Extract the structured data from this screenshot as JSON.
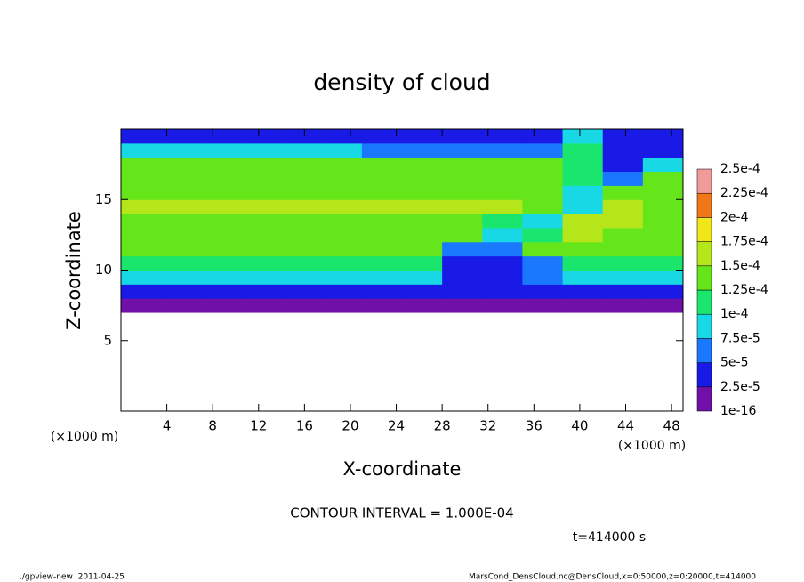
{
  "chart_data": {
    "type": "contourf",
    "title": "density of cloud",
    "xlabel": "X-coordinate",
    "ylabel": "Z-coordinate",
    "z_unit": "(×1000 m)",
    "x_unit": "(×1000 m)",
    "annotation": "CONTOUR INTERVAL = 1.000E-04",
    "time_label": "t=414000 s",
    "footer_left": "./gpview-new  2011-04-25",
    "footer_right": "MarsCond_DensCloud.nc@DensCloud,x=0:50000,z=0:20000,t=414000",
    "xlim": [
      0,
      49
    ],
    "ylim": [
      0,
      20
    ],
    "xticks": [
      4,
      8,
      12,
      16,
      20,
      24,
      28,
      32,
      36,
      40,
      44,
      48
    ],
    "yticks": [
      5,
      10,
      15
    ],
    "levels": [
      {
        "value": 1e-16,
        "label": "1e-16"
      },
      {
        "value": 2.5e-05,
        "label": "2.5e-5"
      },
      {
        "value": 5e-05,
        "label": "5e-5"
      },
      {
        "value": 7.5e-05,
        "label": "7.5e-5"
      },
      {
        "value": 0.0001,
        "label": "1e-4"
      },
      {
        "value": 0.000125,
        "label": "1.25e-4"
      },
      {
        "value": 0.00015,
        "label": "1.5e-4"
      },
      {
        "value": 0.000175,
        "label": "1.75e-4"
      },
      {
        "value": 0.0002,
        "label": "2e-4"
      },
      {
        "value": 0.000225,
        "label": "2.25e-4"
      },
      {
        "value": 0.00025,
        "label": "2.5e-4"
      }
    ],
    "colors": [
      "#7010a8",
      "#1a1ae6",
      "#1a78ff",
      "#19d8e6",
      "#1ae66e",
      "#64e61a",
      "#b4e61a",
      "#f0e619",
      "#f07819",
      "#f09a9a"
    ],
    "field": {
      "x_edges": [
        0,
        3.5,
        7,
        10.5,
        14,
        17.5,
        21,
        24.5,
        28,
        31.5,
        35,
        38.5,
        42,
        45.5,
        49
      ],
      "z_edges": [
        7,
        8,
        9,
        10,
        11,
        12,
        13,
        14,
        15,
        16,
        17,
        18,
        19,
        20
      ],
      "values": [
        [
          5e-06,
          5e-06,
          5e-06,
          5e-06,
          5e-06,
          5e-06,
          5e-06,
          5e-06,
          5e-06,
          5e-06,
          5e-06,
          5e-06,
          5e-06,
          5e-06
        ],
        [
          4e-05,
          4e-05,
          4e-05,
          4e-05,
          4e-05,
          4e-05,
          4e-05,
          4e-05,
          3e-05,
          3e-05,
          4e-05,
          4e-05,
          4e-05,
          4e-05
        ],
        [
          8.5e-05,
          8.5e-05,
          8.5e-05,
          8.5e-05,
          8.5e-05,
          8.5e-05,
          8.5e-05,
          8.5e-05,
          3e-05,
          3e-05,
          6e-05,
          8e-05,
          8.5e-05,
          8.5e-05
        ],
        [
          0.00012,
          0.00012,
          0.00012,
          0.00012,
          0.00012,
          0.00012,
          0.00012,
          0.0001,
          4e-05,
          4e-05,
          6e-05,
          0.00011,
          0.00012,
          0.00012
        ],
        [
          0.00014,
          0.00014,
          0.00014,
          0.00014,
          0.00014,
          0.00014,
          0.00014,
          0.00014,
          5e-05,
          5e-05,
          0.00013,
          0.00014,
          0.00014,
          0.00014
        ],
        [
          0.00014,
          0.00014,
          0.00014,
          0.00014,
          0.00014,
          0.00014,
          0.00014,
          0.00014,
          0.00013,
          8e-05,
          0.00012,
          0.00016,
          0.000145,
          0.00014
        ],
        [
          0.000145,
          0.000145,
          0.000145,
          0.000145,
          0.000145,
          0.000145,
          0.000145,
          0.000145,
          0.000145,
          0.00012,
          8e-05,
          0.000165,
          0.00015,
          0.000145
        ],
        [
          0.00015,
          0.00015,
          0.00015,
          0.00015,
          0.00015,
          0.00015,
          0.00015,
          0.00015,
          0.00015,
          0.00015,
          0.00013,
          9e-05,
          0.000155,
          0.000145
        ],
        [
          0.000145,
          0.000145,
          0.000145,
          0.000145,
          0.000145,
          0.000145,
          0.000145,
          0.000145,
          0.000145,
          0.000145,
          0.00014,
          9e-05,
          0.00014,
          0.00014
        ],
        [
          0.00014,
          0.00014,
          0.00014,
          0.00014,
          0.00014,
          0.00014,
          0.00014,
          0.00014,
          0.00014,
          0.00014,
          0.00014,
          0.00011,
          6e-05,
          0.00013
        ],
        [
          0.00013,
          0.00013,
          0.00013,
          0.00013,
          0.00013,
          0.00013,
          0.00013,
          0.00013,
          0.00013,
          0.00013,
          0.00013,
          0.0001,
          4e-05,
          9e-05
        ],
        [
          9e-05,
          9e-05,
          9e-05,
          9e-05,
          9e-05,
          9e-05,
          6e-05,
          6e-05,
          6e-05,
          6e-05,
          6e-05,
          0.0001,
          4e-05,
          4e-05
        ],
        [
          3e-05,
          3e-05,
          3e-05,
          3e-05,
          3e-05,
          3e-05,
          3e-05,
          3e-05,
          3e-05,
          3e-05,
          3e-05,
          8e-05,
          3e-05,
          3e-05
        ]
      ]
    }
  }
}
